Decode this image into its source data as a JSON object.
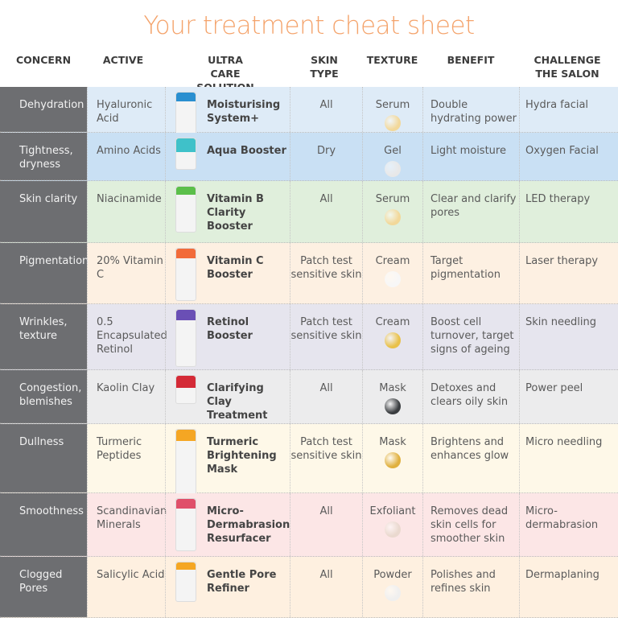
{
  "title": "Your treatment cheat sheet",
  "headers": [
    "CONCERN",
    "ACTIVE",
    "ULTRA CARE SOLUTION",
    "SKIN TYPE",
    "TEXTURE",
    "BENEFIT",
    "CHALLENGE THE SALON"
  ],
  "rows": [
    {
      "concern": "Dehydration",
      "active": "Hyaluronic Acid",
      "solution": "Moisturising System+",
      "skin": "All",
      "texture": "Serum",
      "benefit": "Double hydrating power",
      "challenge": "Hydra facial",
      "bg": "#deebf7",
      "accent": "#2a8fd0",
      "swatch": "#f2d89a"
    },
    {
      "concern": "Tightness, dryness",
      "active": "Amino Acids",
      "solution": "Aqua Booster",
      "skin": "Dry",
      "texture": "Gel",
      "benefit": "Light moisture",
      "challenge": "Oxygen Facial",
      "bg": "#c9e0f4",
      "accent": "#3fc1c9",
      "swatch": "#e8e8e8"
    },
    {
      "concern": "Skin clarity",
      "active": "Niacinamide",
      "solution": "Vitamin B Clarity Booster",
      "skin": "All",
      "texture": "Serum",
      "benefit": "Clear and clarify pores",
      "challenge": "LED therapy",
      "bg": "#e0efdc",
      "accent": "#5bbf4a",
      "swatch": "#f2d89a"
    },
    {
      "concern": "Pigmentation",
      "active": "20% Vitamin C",
      "solution": "Vitamin C Booster",
      "skin": "Patch test sensitive skin",
      "texture": "Cream",
      "benefit": "Target pigmentation",
      "challenge": "Laser therapy",
      "bg": "#fdf0e2",
      "accent": "#f26b3a",
      "swatch": "#f7f7f7"
    },
    {
      "concern": "Wrinkles, texture",
      "active": "0.5 Encapsulated Retinol",
      "solution": "Retinol Booster",
      "skin": "Patch test sensitive skin",
      "texture": "Cream",
      "benefit": "Boost cell turnover, target signs of ageing",
      "challenge": "Skin needling",
      "bg": "#e6e5ee",
      "accent": "#6a4fb5",
      "swatch": "#e9c14a"
    },
    {
      "concern": "Congestion, blemishes",
      "active": "Kaolin Clay",
      "solution": "Clarifying Clay Treatment",
      "skin": "All",
      "texture": "Mask",
      "benefit": "Detoxes and clears oily skin",
      "challenge": "Power peel",
      "bg": "#ececed",
      "accent": "#d42a36",
      "swatch": "#3a3d40"
    },
    {
      "concern": "Dullness",
      "active": "Turmeric Peptides",
      "solution": "Turmeric Brightening Mask",
      "skin": "Patch test sensitive skin",
      "texture": "Mask",
      "benefit": "Brightens and enhances glow",
      "challenge": "Micro needling",
      "bg": "#fef8e8",
      "accent": "#f5a623",
      "swatch": "#e0b03e"
    },
    {
      "concern": "Smoothness",
      "active": "Scandinavian Minerals",
      "solution": "Micro-Dermabrasion Resurfacer",
      "skin": "All",
      "texture": "Exfoliant",
      "benefit": "Removes dead skin cells for smoother skin",
      "challenge": "Micro-dermabrasion",
      "bg": "#fce6e6",
      "accent": "#e0506a",
      "swatch": "#ead9cf"
    },
    {
      "concern": "Clogged Pores",
      "active": "Salicylic Acid",
      "solution": "Gentle Pore Refiner",
      "skin": "All",
      "texture": "Powder",
      "benefit": "Polishes and refines skin",
      "challenge": "Dermaplaning",
      "bg": "#fef0e0",
      "accent": "#f5a623",
      "swatch": "#efefef"
    }
  ]
}
